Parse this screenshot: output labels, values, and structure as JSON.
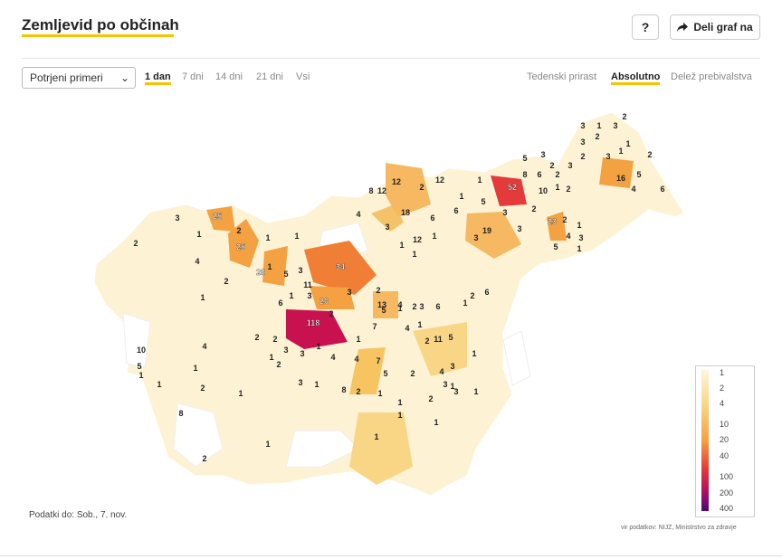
{
  "header": {
    "title": "Zemljevid po občinah",
    "help_label": "?",
    "share_label": "Deli graf na",
    "share_icon": "share-arrow-icon"
  },
  "controls": {
    "select_value": "Potrjeni primeri",
    "period_tabs": [
      "1 dan",
      "7 dni",
      "14 dni",
      "21 dni",
      "Vsi"
    ],
    "period_active": "1 dan",
    "mode_tabs": [
      "Tedenski prirast",
      "Absolutno",
      "Delež prebivalstva"
    ],
    "mode_active": "Absolutno"
  },
  "legend": {
    "labels": [
      "1",
      "2",
      "4",
      "10",
      "20",
      "40",
      "100",
      "200",
      "400"
    ],
    "colors": [
      "#fdf6dc",
      "#fbe9b3",
      "#f8d686",
      "#f6c461",
      "#f4a142",
      "#f07f35",
      "#e43a3a",
      "#b5125f",
      "#6a0a78"
    ]
  },
  "map_labels": [
    {
      "text": "3",
      "v": 3
    },
    {
      "text": "1",
      "v": 1
    },
    {
      "text": "3",
      "v": 3
    },
    {
      "text": "2",
      "v": 2
    },
    {
      "text": "3",
      "v": 3
    },
    {
      "text": "2",
      "v": 2
    },
    {
      "text": "1",
      "v": 1
    },
    {
      "text": "2",
      "v": 2
    },
    {
      "text": "3",
      "v": 3
    },
    {
      "text": "1",
      "v": 1
    },
    {
      "text": "5",
      "v": 5
    },
    {
      "text": "3",
      "v": 3
    },
    {
      "text": "8",
      "v": 8
    },
    {
      "text": "6",
      "v": 6
    },
    {
      "text": "2",
      "v": 2
    },
    {
      "text": "2",
      "v": 2
    },
    {
      "text": "3",
      "v": 3
    },
    {
      "text": "16",
      "v": 16
    },
    {
      "text": "5",
      "v": 5
    },
    {
      "text": "4",
      "v": 4
    },
    {
      "text": "6",
      "v": 6
    },
    {
      "text": "2",
      "v": 2
    },
    {
      "text": "52",
      "v": 52
    },
    {
      "text": "10",
      "v": 10
    },
    {
      "text": "1",
      "v": 1
    },
    {
      "text": "2",
      "v": 2
    },
    {
      "text": "1",
      "v": 1
    },
    {
      "text": "12",
      "v": 12
    },
    {
      "text": "8",
      "v": 8
    },
    {
      "text": "12",
      "v": 12
    },
    {
      "text": "2",
      "v": 2
    },
    {
      "text": "12",
      "v": 12
    },
    {
      "text": "1",
      "v": 1
    },
    {
      "text": "6",
      "v": 6
    },
    {
      "text": "5",
      "v": 5
    },
    {
      "text": "4",
      "v": 4
    },
    {
      "text": "18",
      "v": 18
    },
    {
      "text": "6",
      "v": 6
    },
    {
      "text": "3",
      "v": 3
    },
    {
      "text": "2",
      "v": 2
    },
    {
      "text": "23",
      "v": 23
    },
    {
      "text": "2",
      "v": 2
    },
    {
      "text": "3",
      "v": 3
    },
    {
      "text": "19",
      "v": 19
    },
    {
      "text": "3",
      "v": 3
    },
    {
      "text": "12",
      "v": 12
    },
    {
      "text": "1",
      "v": 1
    },
    {
      "text": "4",
      "v": 4
    },
    {
      "text": "1",
      "v": 1
    },
    {
      "text": "3",
      "v": 3
    },
    {
      "text": "5",
      "v": 5
    },
    {
      "text": "1",
      "v": 1
    },
    {
      "text": "3",
      "v": 3
    },
    {
      "text": "25",
      "v": 25
    },
    {
      "text": "2",
      "v": 2
    },
    {
      "text": "1",
      "v": 1
    },
    {
      "text": "1",
      "v": 1
    },
    {
      "text": "1",
      "v": 1
    },
    {
      "text": "25",
      "v": 25
    },
    {
      "text": "1",
      "v": 1
    },
    {
      "text": "3",
      "v": 3
    },
    {
      "text": "2",
      "v": 2
    },
    {
      "text": "4",
      "v": 4
    },
    {
      "text": "28",
      "v": 28
    },
    {
      "text": "5",
      "v": 5
    },
    {
      "text": "3",
      "v": 3
    },
    {
      "text": "34",
      "v": 34
    },
    {
      "text": "1",
      "v": 1
    },
    {
      "text": "1",
      "v": 1
    },
    {
      "text": "11",
      "v": 11
    },
    {
      "text": "2",
      "v": 2
    },
    {
      "text": "1",
      "v": 1
    },
    {
      "text": "6",
      "v": 6
    },
    {
      "text": "1",
      "v": 1
    },
    {
      "text": "3",
      "v": 3
    },
    {
      "text": "26",
      "v": 26
    },
    {
      "text": "3",
      "v": 3
    },
    {
      "text": "2",
      "v": 2
    },
    {
      "text": "5",
      "v": 5
    },
    {
      "text": "1",
      "v": 1
    },
    {
      "text": "3",
      "v": 3
    },
    {
      "text": "4",
      "v": 4
    },
    {
      "text": "1",
      "v": 1
    },
    {
      "text": "2",
      "v": 2
    },
    {
      "text": "5",
      "v": 5
    },
    {
      "text": "3",
      "v": 3
    },
    {
      "text": "13",
      "v": 13
    },
    {
      "text": "4",
      "v": 4
    },
    {
      "text": "2",
      "v": 2
    },
    {
      "text": "6",
      "v": 6
    },
    {
      "text": "1",
      "v": 1
    },
    {
      "text": "2",
      "v": 2
    },
    {
      "text": "6",
      "v": 6
    },
    {
      "text": "118",
      "v": 118
    },
    {
      "text": "2",
      "v": 2
    },
    {
      "text": "7",
      "v": 7
    },
    {
      "text": "1",
      "v": 1
    },
    {
      "text": "11",
      "v": 11
    },
    {
      "text": "2",
      "v": 2
    },
    {
      "text": "2",
      "v": 2
    },
    {
      "text": "1",
      "v": 1
    },
    {
      "text": "3",
      "v": 3
    },
    {
      "text": "3",
      "v": 3
    },
    {
      "text": "1",
      "v": 1
    },
    {
      "text": "4",
      "v": 4
    },
    {
      "text": "4",
      "v": 4
    },
    {
      "text": "7",
      "v": 7
    },
    {
      "text": "5",
      "v": 5
    },
    {
      "text": "2",
      "v": 2
    },
    {
      "text": "4",
      "v": 4
    },
    {
      "text": "3",
      "v": 3
    },
    {
      "text": "1",
      "v": 1
    },
    {
      "text": "1",
      "v": 1
    },
    {
      "text": "10",
      "v": 10
    },
    {
      "text": "5",
      "v": 5
    },
    {
      "text": "1",
      "v": 1
    },
    {
      "text": "1",
      "v": 1
    },
    {
      "text": "4",
      "v": 4
    },
    {
      "text": "1",
      "v": 1
    },
    {
      "text": "2",
      "v": 2
    },
    {
      "text": "2",
      "v": 2
    },
    {
      "text": "1",
      "v": 1
    },
    {
      "text": "3",
      "v": 3
    },
    {
      "text": "1",
      "v": 1
    },
    {
      "text": "8",
      "v": 8
    },
    {
      "text": "2",
      "v": 2
    },
    {
      "text": "1",
      "v": 1
    },
    {
      "text": "1",
      "v": 1
    },
    {
      "text": "2",
      "v": 2
    },
    {
      "text": "1",
      "v": 1
    },
    {
      "text": "3",
      "v": 3
    },
    {
      "text": "8",
      "v": 8
    },
    {
      "text": "1",
      "v": 1
    },
    {
      "text": "2",
      "v": 2
    },
    {
      "text": "1",
      "v": 1
    },
    {
      "text": "1",
      "v": 1
    },
    {
      "text": "1",
      "v": 1
    }
  ],
  "footer": {
    "data_date": "Podatki do: Sob., 7. nov.",
    "source": "vir podatkov: NIJZ, Ministrstvo za zdravje"
  }
}
